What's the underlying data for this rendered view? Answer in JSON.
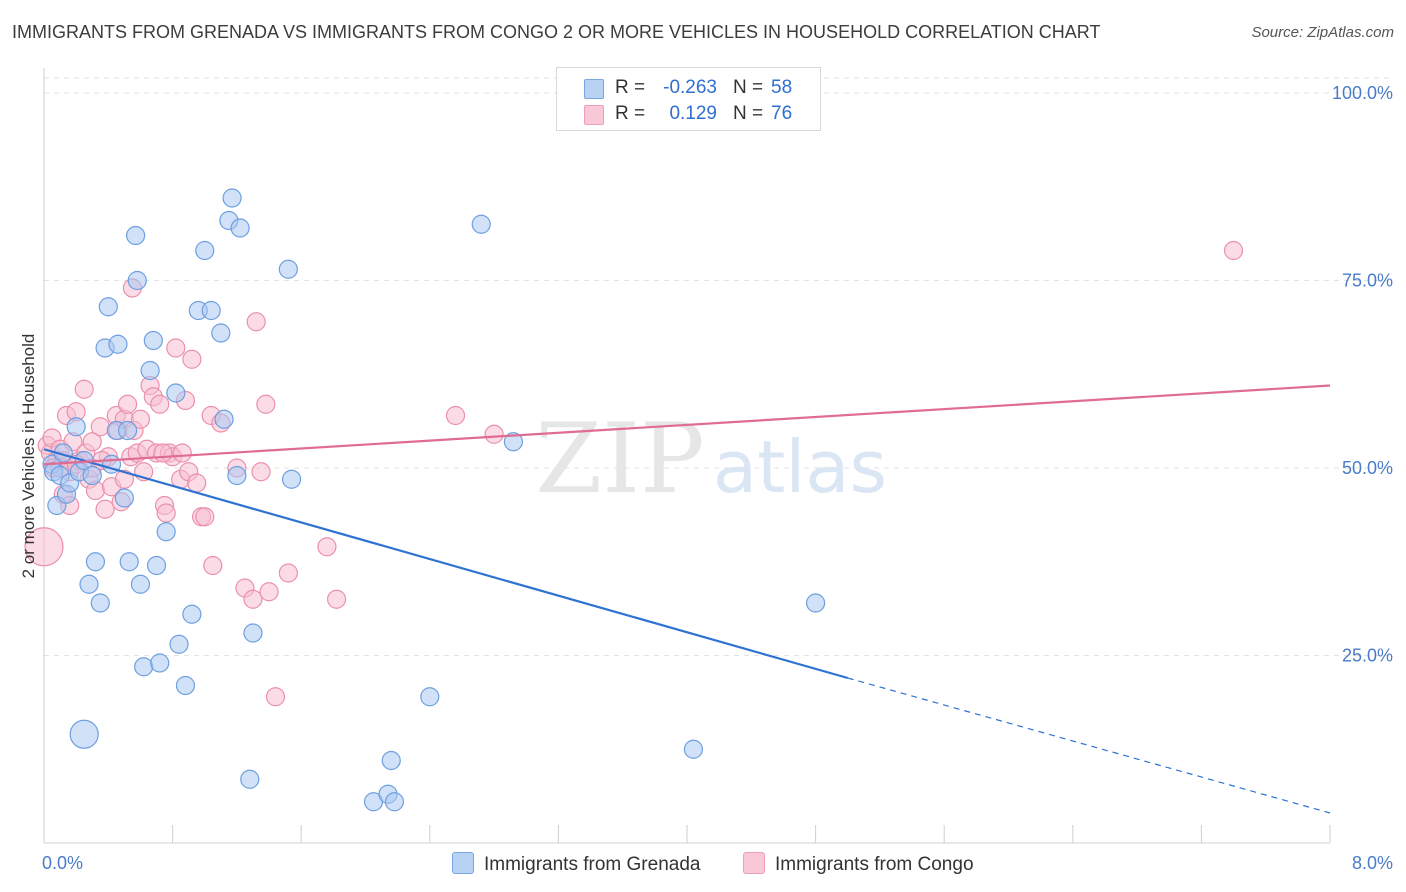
{
  "header": {
    "title": "IMMIGRANTS FROM GRENADA VS IMMIGRANTS FROM CONGO 2 OR MORE VEHICLES IN HOUSEHOLD CORRELATION CHART",
    "source": "Source: ZipAtlas.com"
  },
  "legend": {
    "rows": [
      {
        "r_label": "R =",
        "r_value": "-0.263",
        "n_label": "N =",
        "n_value": "58"
      },
      {
        "r_label": "R =",
        "r_value": "0.129",
        "n_label": "N =",
        "n_value": "76"
      }
    ]
  },
  "watermark": {
    "zip": "ZIP",
    "atlas": "atlas"
  },
  "colors": {
    "grenada_fill": "#a9c9f2",
    "grenada_stroke": "#6d9fe0",
    "grenada_line": "#2e72d2",
    "congo_fill": "#f7bfd1",
    "congo_stroke": "#eb8fac",
    "congo_line": "#e06b93",
    "tick_text": "#4a7cc9"
  },
  "chart_data": {
    "type": "scatter",
    "title": "IMMIGRANTS FROM GRENADA VS IMMIGRANTS FROM CONGO 2 OR MORE VEHICLES IN HOUSEHOLD CORRELATION CHART",
    "xlabel": "",
    "ylabel": "2 or more Vehicles in Household",
    "xlim": [
      0,
      8
    ],
    "ylim": [
      0,
      102
    ],
    "x_tick_labels": [
      "0.0%",
      "8.0%"
    ],
    "y_ticks": [
      25,
      50,
      75,
      100
    ],
    "y_tick_labels": [
      "25.0%",
      "50.0%",
      "75.0%",
      "100.0%"
    ],
    "series": [
      {
        "name": "Immigrants from Grenada",
        "points": [
          [
            0.05,
            50.5
          ],
          [
            0.06,
            49.5
          ],
          [
            0.08,
            45
          ],
          [
            0.1,
            49
          ],
          [
            0.12,
            52
          ],
          [
            0.14,
            46.5
          ],
          [
            0.16,
            48
          ],
          [
            0.2,
            55.5
          ],
          [
            0.22,
            49.5
          ],
          [
            0.25,
            51
          ],
          [
            0.3,
            49
          ],
          [
            0.32,
            37.5
          ],
          [
            0.35,
            32
          ],
          [
            0.28,
            34.5
          ],
          [
            0.38,
            66
          ],
          [
            0.4,
            71.5
          ],
          [
            0.42,
            50.5
          ],
          [
            0.45,
            55
          ],
          [
            0.46,
            66.5
          ],
          [
            0.5,
            46
          ],
          [
            0.52,
            55
          ],
          [
            0.53,
            37.5
          ],
          [
            0.57,
            81
          ],
          [
            0.58,
            75
          ],
          [
            0.6,
            34.5
          ],
          [
            0.62,
            23.5
          ],
          [
            0.66,
            63
          ],
          [
            0.68,
            67
          ],
          [
            0.7,
            37
          ],
          [
            0.72,
            24
          ],
          [
            0.76,
            41.5
          ],
          [
            0.82,
            60
          ],
          [
            0.84,
            26.5
          ],
          [
            0.88,
            21
          ],
          [
            0.92,
            30.5
          ],
          [
            0.96,
            71
          ],
          [
            1.0,
            79
          ],
          [
            1.04,
            71
          ],
          [
            1.1,
            68
          ],
          [
            1.12,
            56.5
          ],
          [
            1.15,
            83
          ],
          [
            1.17,
            86
          ],
          [
            1.2,
            49
          ],
          [
            1.22,
            82
          ],
          [
            1.28,
            8.5
          ],
          [
            1.3,
            28
          ],
          [
            1.52,
            76.5
          ],
          [
            1.54,
            48.5
          ],
          [
            2.05,
            5.5
          ],
          [
            2.14,
            6.5
          ],
          [
            2.16,
            11
          ],
          [
            2.18,
            5.5
          ],
          [
            2.4,
            19.5
          ],
          [
            2.72,
            82.5
          ],
          [
            2.92,
            53.5
          ],
          [
            4.04,
            12.5
          ],
          [
            4.8,
            32
          ],
          [
            0.25,
            14.5
          ]
        ],
        "sizes": [
          20,
          20,
          20,
          20,
          20,
          20,
          20,
          20,
          20,
          20,
          20,
          20,
          20,
          20,
          20,
          20,
          20,
          20,
          20,
          20,
          20,
          20,
          20,
          20,
          20,
          20,
          20,
          20,
          20,
          20,
          20,
          20,
          20,
          20,
          20,
          20,
          20,
          20,
          20,
          20,
          20,
          20,
          20,
          20,
          20,
          20,
          20,
          20,
          20,
          20,
          20,
          20,
          20,
          20,
          20,
          20,
          20,
          30
        ]
      },
      {
        "name": "Immigrants from Congo",
        "points": [
          [
            0.02,
            53
          ],
          [
            0.04,
            52
          ],
          [
            0.05,
            54
          ],
          [
            0.08,
            51
          ],
          [
            0.1,
            52.5
          ],
          [
            0.12,
            51
          ],
          [
            0.14,
            57
          ],
          [
            0.16,
            49.5
          ],
          [
            0.18,
            53.5
          ],
          [
            0.2,
            57.5
          ],
          [
            0.22,
            51
          ],
          [
            0.25,
            60.5
          ],
          [
            0.26,
            52
          ],
          [
            0.28,
            48.5
          ],
          [
            0.3,
            53.5
          ],
          [
            0.32,
            47
          ],
          [
            0.35,
            55.5
          ],
          [
            0.38,
            44.5
          ],
          [
            0.4,
            51.5
          ],
          [
            0.42,
            47.5
          ],
          [
            0.45,
            57
          ],
          [
            0.46,
            55
          ],
          [
            0.48,
            45.5
          ],
          [
            0.5,
            56.5
          ],
          [
            0.52,
            58.5
          ],
          [
            0.54,
            51.5
          ],
          [
            0.55,
            74
          ],
          [
            0.56,
            55
          ],
          [
            0.58,
            52
          ],
          [
            0.6,
            56.5
          ],
          [
            0.62,
            49.5
          ],
          [
            0.64,
            52.5
          ],
          [
            0.66,
            61
          ],
          [
            0.68,
            59.5
          ],
          [
            0.7,
            52
          ],
          [
            0.72,
            58.5
          ],
          [
            0.75,
            45
          ],
          [
            0.76,
            44
          ],
          [
            0.78,
            52
          ],
          [
            0.8,
            51.5
          ],
          [
            0.82,
            66
          ],
          [
            0.85,
            48.5
          ],
          [
            0.88,
            59
          ],
          [
            0.9,
            49.5
          ],
          [
            0.92,
            64.5
          ],
          [
            0.95,
            48
          ],
          [
            0.98,
            43.5
          ],
          [
            1.0,
            43.5
          ],
          [
            1.04,
            57
          ],
          [
            1.05,
            37
          ],
          [
            1.1,
            56
          ],
          [
            1.2,
            50
          ],
          [
            1.25,
            34
          ],
          [
            1.3,
            32.5
          ],
          [
            1.32,
            69.5
          ],
          [
            1.35,
            49.5
          ],
          [
            1.38,
            58.5
          ],
          [
            1.4,
            33.5
          ],
          [
            1.44,
            19.5
          ],
          [
            1.52,
            36
          ],
          [
            1.76,
            39.5
          ],
          [
            1.82,
            32.5
          ],
          [
            2.56,
            57
          ],
          [
            2.8,
            54.5
          ],
          [
            7.4,
            79
          ],
          [
            0.0,
            39.5
          ],
          [
            0.06,
            50
          ],
          [
            0.1,
            50
          ],
          [
            0.12,
            46.5
          ],
          [
            0.16,
            45
          ],
          [
            0.3,
            50
          ],
          [
            0.36,
            51
          ],
          [
            0.5,
            48.5
          ],
          [
            0.74,
            52
          ],
          [
            0.86,
            52
          ],
          [
            0.2,
            50.5
          ]
        ],
        "sizes": [
          20,
          20,
          20,
          20,
          20,
          20,
          20,
          20,
          20,
          20,
          20,
          20,
          20,
          20,
          20,
          20,
          20,
          20,
          20,
          20,
          20,
          20,
          20,
          20,
          20,
          20,
          20,
          20,
          20,
          20,
          20,
          20,
          20,
          20,
          20,
          20,
          20,
          20,
          20,
          20,
          20,
          20,
          20,
          20,
          20,
          20,
          20,
          20,
          20,
          20,
          20,
          20,
          20,
          20,
          20,
          20,
          20,
          20,
          20,
          20,
          20,
          20,
          20,
          20,
          20,
          40,
          20,
          20,
          20,
          20,
          20,
          20,
          20,
          20,
          20,
          20
        ]
      }
    ],
    "trend_lines": [
      {
        "name": "Immigrants from Grenada",
        "from": [
          0.0,
          52.5
        ],
        "solid_to": [
          5.0,
          22.0
        ],
        "dashed_to": [
          8.0,
          4.0
        ]
      },
      {
        "name": "Immigrants from Congo",
        "from": [
          0.0,
          50.5
        ],
        "to": [
          8.0,
          61.0
        ]
      }
    ],
    "legend_placement": "top-center",
    "grid": true
  }
}
